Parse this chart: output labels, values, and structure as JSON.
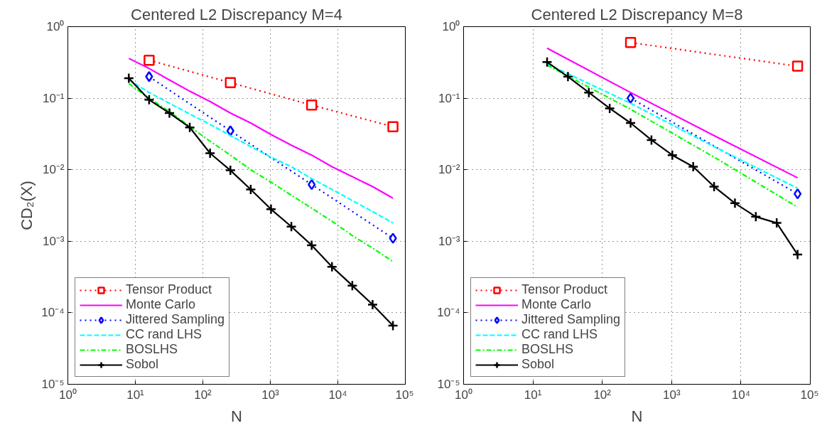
{
  "chart_data": [
    {
      "type": "line",
      "title": "Centered L2 Discrepancy M=4",
      "xlabel": "N",
      "ylabel": "CD₂(X)",
      "log": "xy",
      "grid": true,
      "legend": "bottom left",
      "xlim": [
        1,
        100000
      ],
      "ylim": [
        1e-05,
        1
      ],
      "xticks": [
        {
          "value": 1,
          "label": "10⁰"
        },
        {
          "value": 10,
          "label": "10¹"
        },
        {
          "value": 100,
          "label": "10²"
        },
        {
          "value": 1000,
          "label": "10³"
        },
        {
          "value": 10000,
          "label": "10⁴"
        },
        {
          "value": 100000,
          "label": "10⁵"
        }
      ],
      "yticks": [
        {
          "value": 1e-05,
          "label": "10⁻⁵"
        },
        {
          "value": 0.0001,
          "label": "10⁻⁴"
        },
        {
          "value": 0.001,
          "label": "10⁻³"
        },
        {
          "value": 0.01,
          "label": "10⁻²"
        },
        {
          "value": 0.1,
          "label": "10⁻¹"
        },
        {
          "value": 1,
          "label": "10⁰"
        }
      ],
      "series": [
        {
          "name": "Tensor Product",
          "color": "#ff0000",
          "line_style": "dotted",
          "marker": "square",
          "x": [
            16,
            256,
            4096,
            65536
          ],
          "values": [
            0.34,
            0.165,
            0.08,
            0.04
          ]
        },
        {
          "name": "Monte Carlo",
          "color": "#ff00ff",
          "line_style": "solid",
          "marker": "none",
          "x": [
            8,
            16,
            32,
            64,
            128,
            256,
            512,
            1024,
            2048,
            4096,
            8192,
            16384,
            32768,
            65536
          ],
          "values": [
            0.36,
            0.26,
            0.18,
            0.125,
            0.09,
            0.062,
            0.045,
            0.031,
            0.022,
            0.016,
            0.011,
            0.008,
            0.0058,
            0.004
          ]
        },
        {
          "name": "Jittered Sampling",
          "color": "#0000ff",
          "line_style": "dotted",
          "marker": "diamond",
          "x": [
            16,
            256,
            4096,
            65536
          ],
          "values": [
            0.2,
            0.035,
            0.0062,
            0.0011
          ]
        },
        {
          "name": "CC rand LHS",
          "color": "#00ffff",
          "line_style": "dashed",
          "marker": "none",
          "x": [
            8,
            16,
            32,
            64,
            128,
            256,
            512,
            1024,
            2048,
            4096,
            8192,
            16384,
            32768,
            65536
          ],
          "values": [
            0.18,
            0.12,
            0.085,
            0.06,
            0.043,
            0.03,
            0.021,
            0.015,
            0.011,
            0.0075,
            0.0053,
            0.0037,
            0.0026,
            0.0018
          ]
        },
        {
          "name": "BOSLHS",
          "color": "#00ff00",
          "line_style": "dashdot",
          "marker": "none",
          "x": [
            8,
            16,
            32,
            64,
            128,
            256,
            512,
            1024,
            2048,
            4096,
            8192,
            16384,
            32768,
            65536
          ],
          "values": [
            0.16,
            0.1,
            0.065,
            0.04,
            0.025,
            0.016,
            0.01,
            0.0067,
            0.0044,
            0.0029,
            0.0019,
            0.0012,
            0.0008,
            0.00052
          ]
        },
        {
          "name": "Sobol",
          "color": "#000000",
          "line_style": "solid",
          "marker": "cross",
          "x": [
            8,
            16,
            32,
            64,
            128,
            256,
            512,
            1024,
            2048,
            4096,
            8192,
            16384,
            32768,
            65536
          ],
          "values": [
            0.19,
            0.095,
            0.062,
            0.039,
            0.017,
            0.0098,
            0.0053,
            0.0028,
            0.0016,
            0.00088,
            0.00044,
            0.00024,
            0.00013,
            6.6e-05
          ]
        }
      ]
    },
    {
      "type": "line",
      "title": "Centered L2 Discrepancy M=8",
      "xlabel": "N",
      "log": "xy",
      "grid": true,
      "legend": "bottom left",
      "xlim": [
        1,
        100000
      ],
      "ylim": [
        1e-05,
        1
      ],
      "xticks": [
        {
          "value": 1,
          "label": "10⁰"
        },
        {
          "value": 10,
          "label": "10¹"
        },
        {
          "value": 100,
          "label": "10²"
        },
        {
          "value": 1000,
          "label": "10³"
        },
        {
          "value": 10000,
          "label": "10⁴"
        },
        {
          "value": 100000,
          "label": "10⁵"
        }
      ],
      "yticks": [
        {
          "value": 1e-05,
          "label": "10⁻⁵"
        },
        {
          "value": 0.0001,
          "label": "10⁻⁴"
        },
        {
          "value": 0.001,
          "label": "10⁻³"
        },
        {
          "value": 0.01,
          "label": "10⁻²"
        },
        {
          "value": 0.1,
          "label": "10⁻¹"
        },
        {
          "value": 1,
          "label": "10⁰"
        }
      ],
      "series": [
        {
          "name": "Tensor Product",
          "color": "#ff0000",
          "line_style": "dotted",
          "marker": "square",
          "x": [
            256,
            65536
          ],
          "values": [
            0.6,
            0.28
          ]
        },
        {
          "name": "Monte Carlo",
          "color": "#ff00ff",
          "line_style": "solid",
          "marker": "none",
          "x": [
            16,
            256,
            4096,
            65536
          ],
          "values": [
            0.5,
            0.12,
            0.03,
            0.0077
          ]
        },
        {
          "name": "Jittered Sampling",
          "color": "#0000ff",
          "line_style": "dotted",
          "marker": "diamond",
          "x": [
            256,
            65536
          ],
          "values": [
            0.1,
            0.0046
          ]
        },
        {
          "name": "CC rand LHS",
          "color": "#00ffff",
          "line_style": "dashed",
          "marker": "none",
          "x": [
            16,
            256,
            4096,
            65536
          ],
          "values": [
            0.3,
            0.085,
            0.021,
            0.0055
          ]
        },
        {
          "name": "BOSLHS",
          "color": "#00ff00",
          "line_style": "dashdot",
          "marker": "none",
          "x": [
            16,
            256,
            4096,
            65536
          ],
          "values": [
            0.29,
            0.07,
            0.015,
            0.003
          ]
        },
        {
          "name": "Sobol",
          "color": "#000000",
          "line_style": "solid",
          "marker": "cross",
          "x": [
            16,
            32,
            64,
            128,
            256,
            512,
            1024,
            2048,
            4096,
            8192,
            16384,
            32768,
            65536
          ],
          "values": [
            0.32,
            0.2,
            0.12,
            0.072,
            0.045,
            0.026,
            0.016,
            0.011,
            0.0058,
            0.0034,
            0.0022,
            0.0018,
            0.00065
          ]
        }
      ]
    }
  ]
}
